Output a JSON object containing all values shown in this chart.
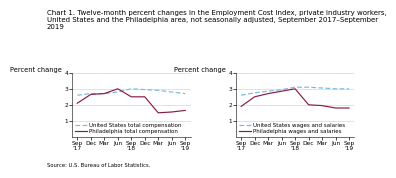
{
  "title_line1": "Chart 1. Twelve-month percent changes in the Employment Cost Index, private industry workers,",
  "title_line2": "United States and the Philadelphia area, not seasonally adjusted, September 2017–September",
  "title_line3": "2019",
  "source": "Source: U.S. Bureau of Labor Statistics.",
  "x_labels": [
    "Sep\n'17",
    "Dec",
    "Mar",
    "Jun",
    "Sep\n'18",
    "Dec",
    "Mar",
    "Jun",
    "Sep\n'19"
  ],
  "left": {
    "ylabel": "Percent change",
    "ylim": [
      0.0,
      4.0
    ],
    "yticks": [
      1.0,
      2.0,
      3.0,
      4.0
    ],
    "us_comp": [
      2.6,
      2.7,
      2.7,
      2.8,
      3.0,
      2.95,
      2.9,
      2.8,
      2.7
    ],
    "ph_comp": [
      2.1,
      2.65,
      2.7,
      3.0,
      2.5,
      2.5,
      1.5,
      1.55,
      1.65
    ],
    "legend1": "United States total compensation",
    "legend2": "Philadelphia total compensation"
  },
  "right": {
    "ylabel": "Percent change",
    "ylim": [
      0.0,
      4.0
    ],
    "yticks": [
      1.0,
      2.0,
      3.0,
      4.0
    ],
    "us_wages": [
      2.6,
      2.75,
      2.85,
      2.95,
      3.1,
      3.1,
      3.05,
      3.0,
      3.0
    ],
    "ph_wages": [
      1.9,
      2.5,
      2.7,
      2.85,
      3.0,
      2.0,
      1.95,
      1.8,
      1.8
    ],
    "legend1": "United States wages and salaries",
    "legend2": "Philadelphia wages and salaries"
  },
  "us_color": "#7ab8e0",
  "ph_color": "#8b1a4a",
  "title_fontsize": 5.0,
  "label_fontsize": 4.8,
  "tick_fontsize": 4.2,
  "legend_fontsize": 4.0,
  "source_fontsize": 3.8
}
